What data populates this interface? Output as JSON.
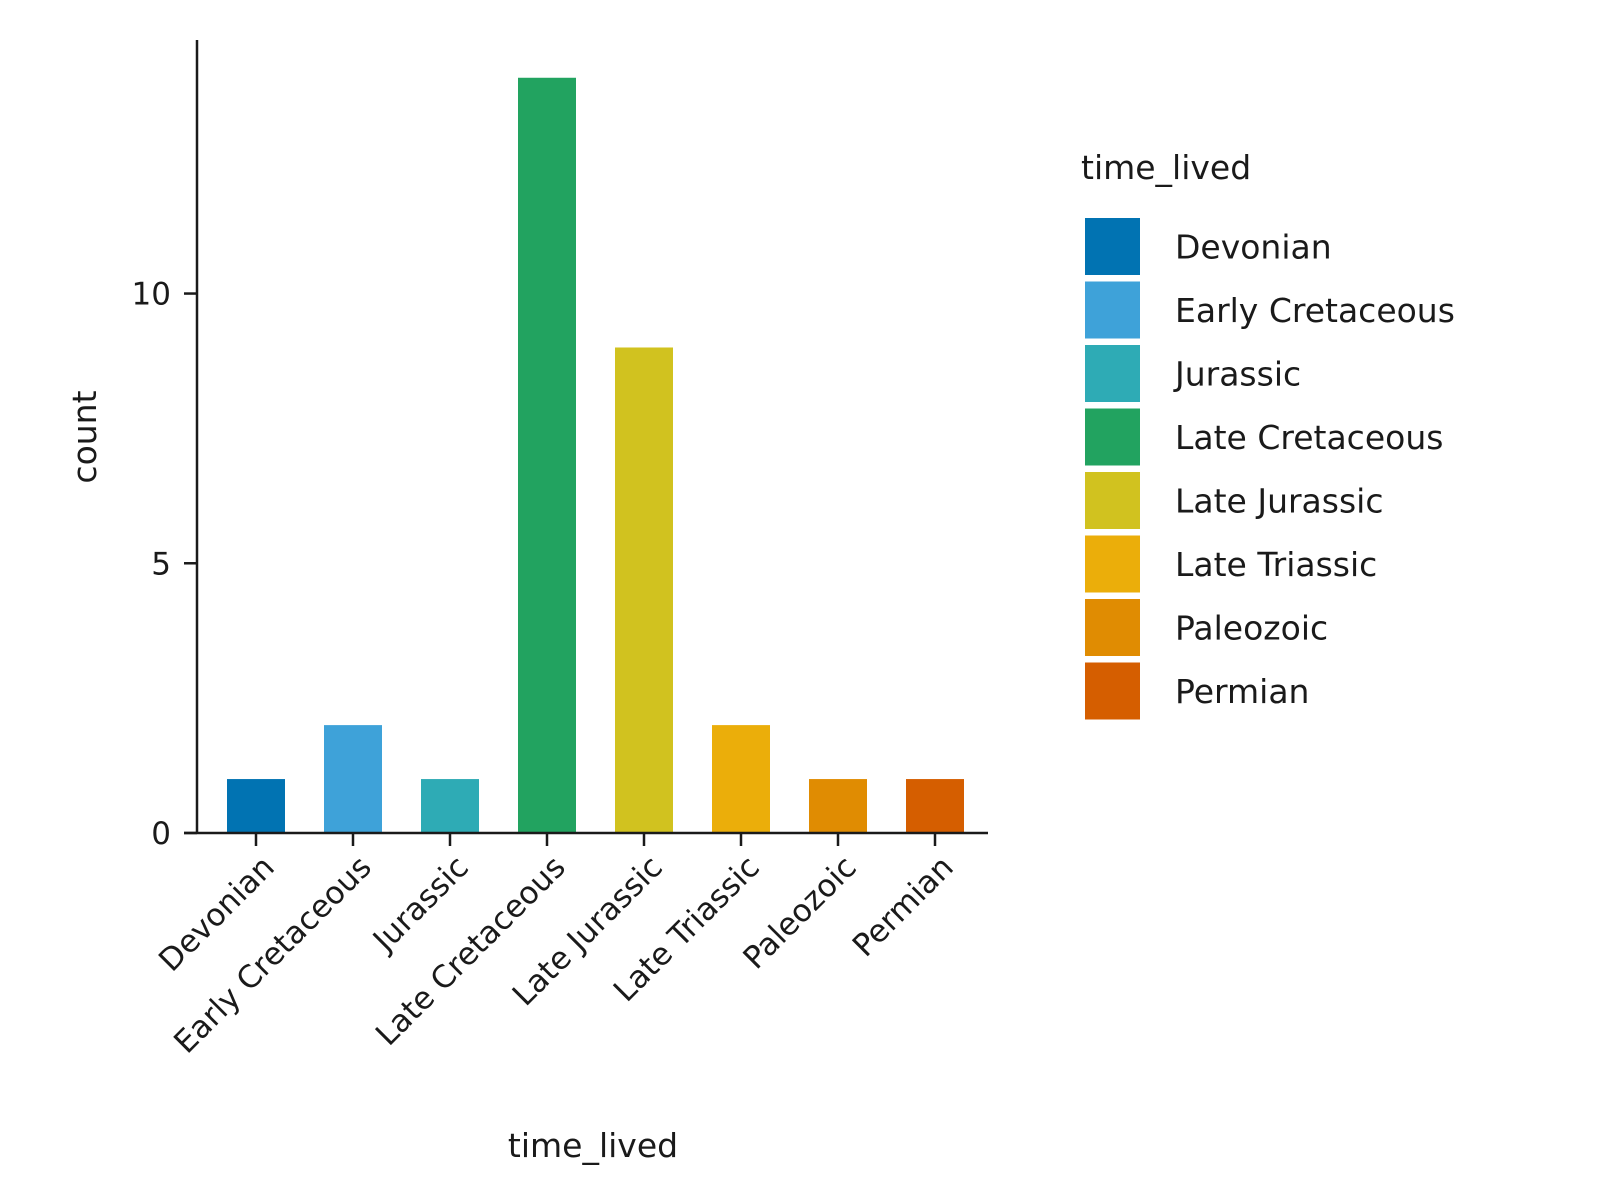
{
  "chart_data": {
    "type": "bar",
    "title": "",
    "xlabel": "time_lived",
    "ylabel": "count",
    "categories": [
      "Devonian",
      "Early Cretaceous",
      "Jurassic",
      "Late Cretaceous",
      "Late Jurassic",
      "Late Triassic",
      "Paleozoic",
      "Permian"
    ],
    "values": [
      1,
      2,
      1,
      14,
      9,
      2,
      1,
      1
    ],
    "colors": [
      "#0173b2",
      "#3ea2d9",
      "#2eabb5",
      "#22a360",
      "#d1c21f",
      "#ebae0a",
      "#e08c02",
      "#d55e00"
    ],
    "ylim": [
      0,
      14.7
    ],
    "yticks": [
      0,
      5,
      10
    ],
    "grid": false,
    "legend": {
      "title": "time_lived",
      "placement": "right",
      "entries": [
        "Devonian",
        "Early Cretaceous",
        "Jurassic",
        "Late Cretaceous",
        "Late Jurassic",
        "Late Triassic",
        "Paleozoic",
        "Permian"
      ]
    }
  }
}
